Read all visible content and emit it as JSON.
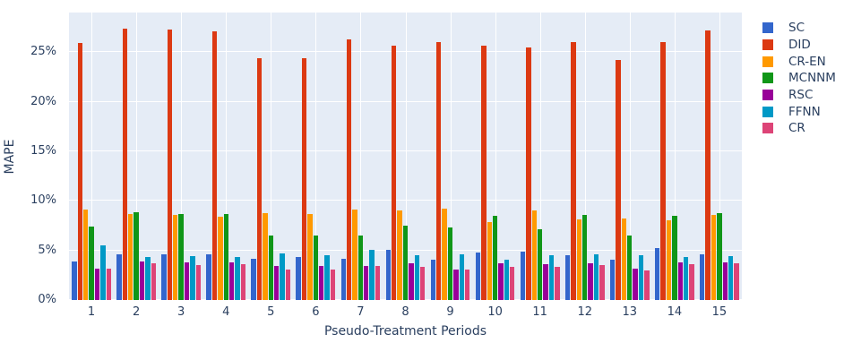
{
  "chart_data": {
    "type": "bar",
    "title": "",
    "xlabel": "Pseudo-Treatment Periods",
    "ylabel": "MAPE",
    "categories": [
      "1",
      "2",
      "3",
      "4",
      "5",
      "6",
      "7",
      "8",
      "9",
      "10",
      "11",
      "12",
      "13",
      "14",
      "15"
    ],
    "series": [
      {
        "name": "SC",
        "color": "#3366cc",
        "values": [
          3.9,
          4.6,
          4.6,
          4.6,
          4.2,
          4.3,
          4.2,
          5.1,
          4.1,
          4.8,
          4.9,
          4.5,
          4.1,
          5.2,
          4.6
        ]
      },
      {
        "name": "DID",
        "color": "#dc3912",
        "values": [
          25.9,
          27.4,
          27.3,
          27.1,
          24.4,
          24.4,
          26.3,
          25.7,
          26.0,
          25.7,
          25.5,
          26.0,
          24.2,
          26.0,
          27.2
        ]
      },
      {
        "name": "CR-EN",
        "color": "#ff9900",
        "values": [
          9.1,
          8.7,
          8.6,
          8.4,
          8.8,
          8.7,
          9.1,
          9.0,
          9.2,
          7.9,
          9.0,
          8.1,
          8.2,
          8.0,
          8.6
        ]
      },
      {
        "name": "MCNNM",
        "color": "#109618",
        "values": [
          7.4,
          8.9,
          8.7,
          8.7,
          6.5,
          6.5,
          6.5,
          7.5,
          7.3,
          8.5,
          7.1,
          8.6,
          6.5,
          8.5,
          8.8
        ]
      },
      {
        "name": "RSC",
        "color": "#990099",
        "values": [
          3.2,
          3.9,
          3.8,
          3.8,
          3.4,
          3.4,
          3.4,
          3.7,
          3.1,
          3.7,
          3.6,
          3.7,
          3.2,
          3.8,
          3.8
        ]
      },
      {
        "name": "FFNN",
        "color": "#0099c6",
        "values": [
          5.5,
          4.3,
          4.4,
          4.3,
          4.7,
          4.5,
          5.1,
          4.5,
          4.6,
          4.1,
          4.5,
          4.6,
          4.5,
          4.3,
          4.4
        ]
      },
      {
        "name": "CR",
        "color": "#dd4477",
        "values": [
          3.2,
          3.7,
          3.5,
          3.6,
          3.1,
          3.1,
          3.4,
          3.3,
          3.1,
          3.3,
          3.3,
          3.5,
          3.0,
          3.6,
          3.7
        ]
      }
    ],
    "yticks": [
      {
        "label": "0%",
        "value": 0
      },
      {
        "label": "5%",
        "value": 5
      },
      {
        "label": "10%",
        "value": 10
      },
      {
        "label": "15%",
        "value": 15
      },
      {
        "label": "20%",
        "value": 20
      },
      {
        "label": "25%",
        "value": 25
      }
    ],
    "ylim": [
      0,
      29
    ],
    "legend_position": "top-right-outside",
    "grid": true,
    "colors": {
      "plot_background": "#e5ecf6",
      "gridline": "#ffffff",
      "text": "#2a3f5f"
    }
  }
}
